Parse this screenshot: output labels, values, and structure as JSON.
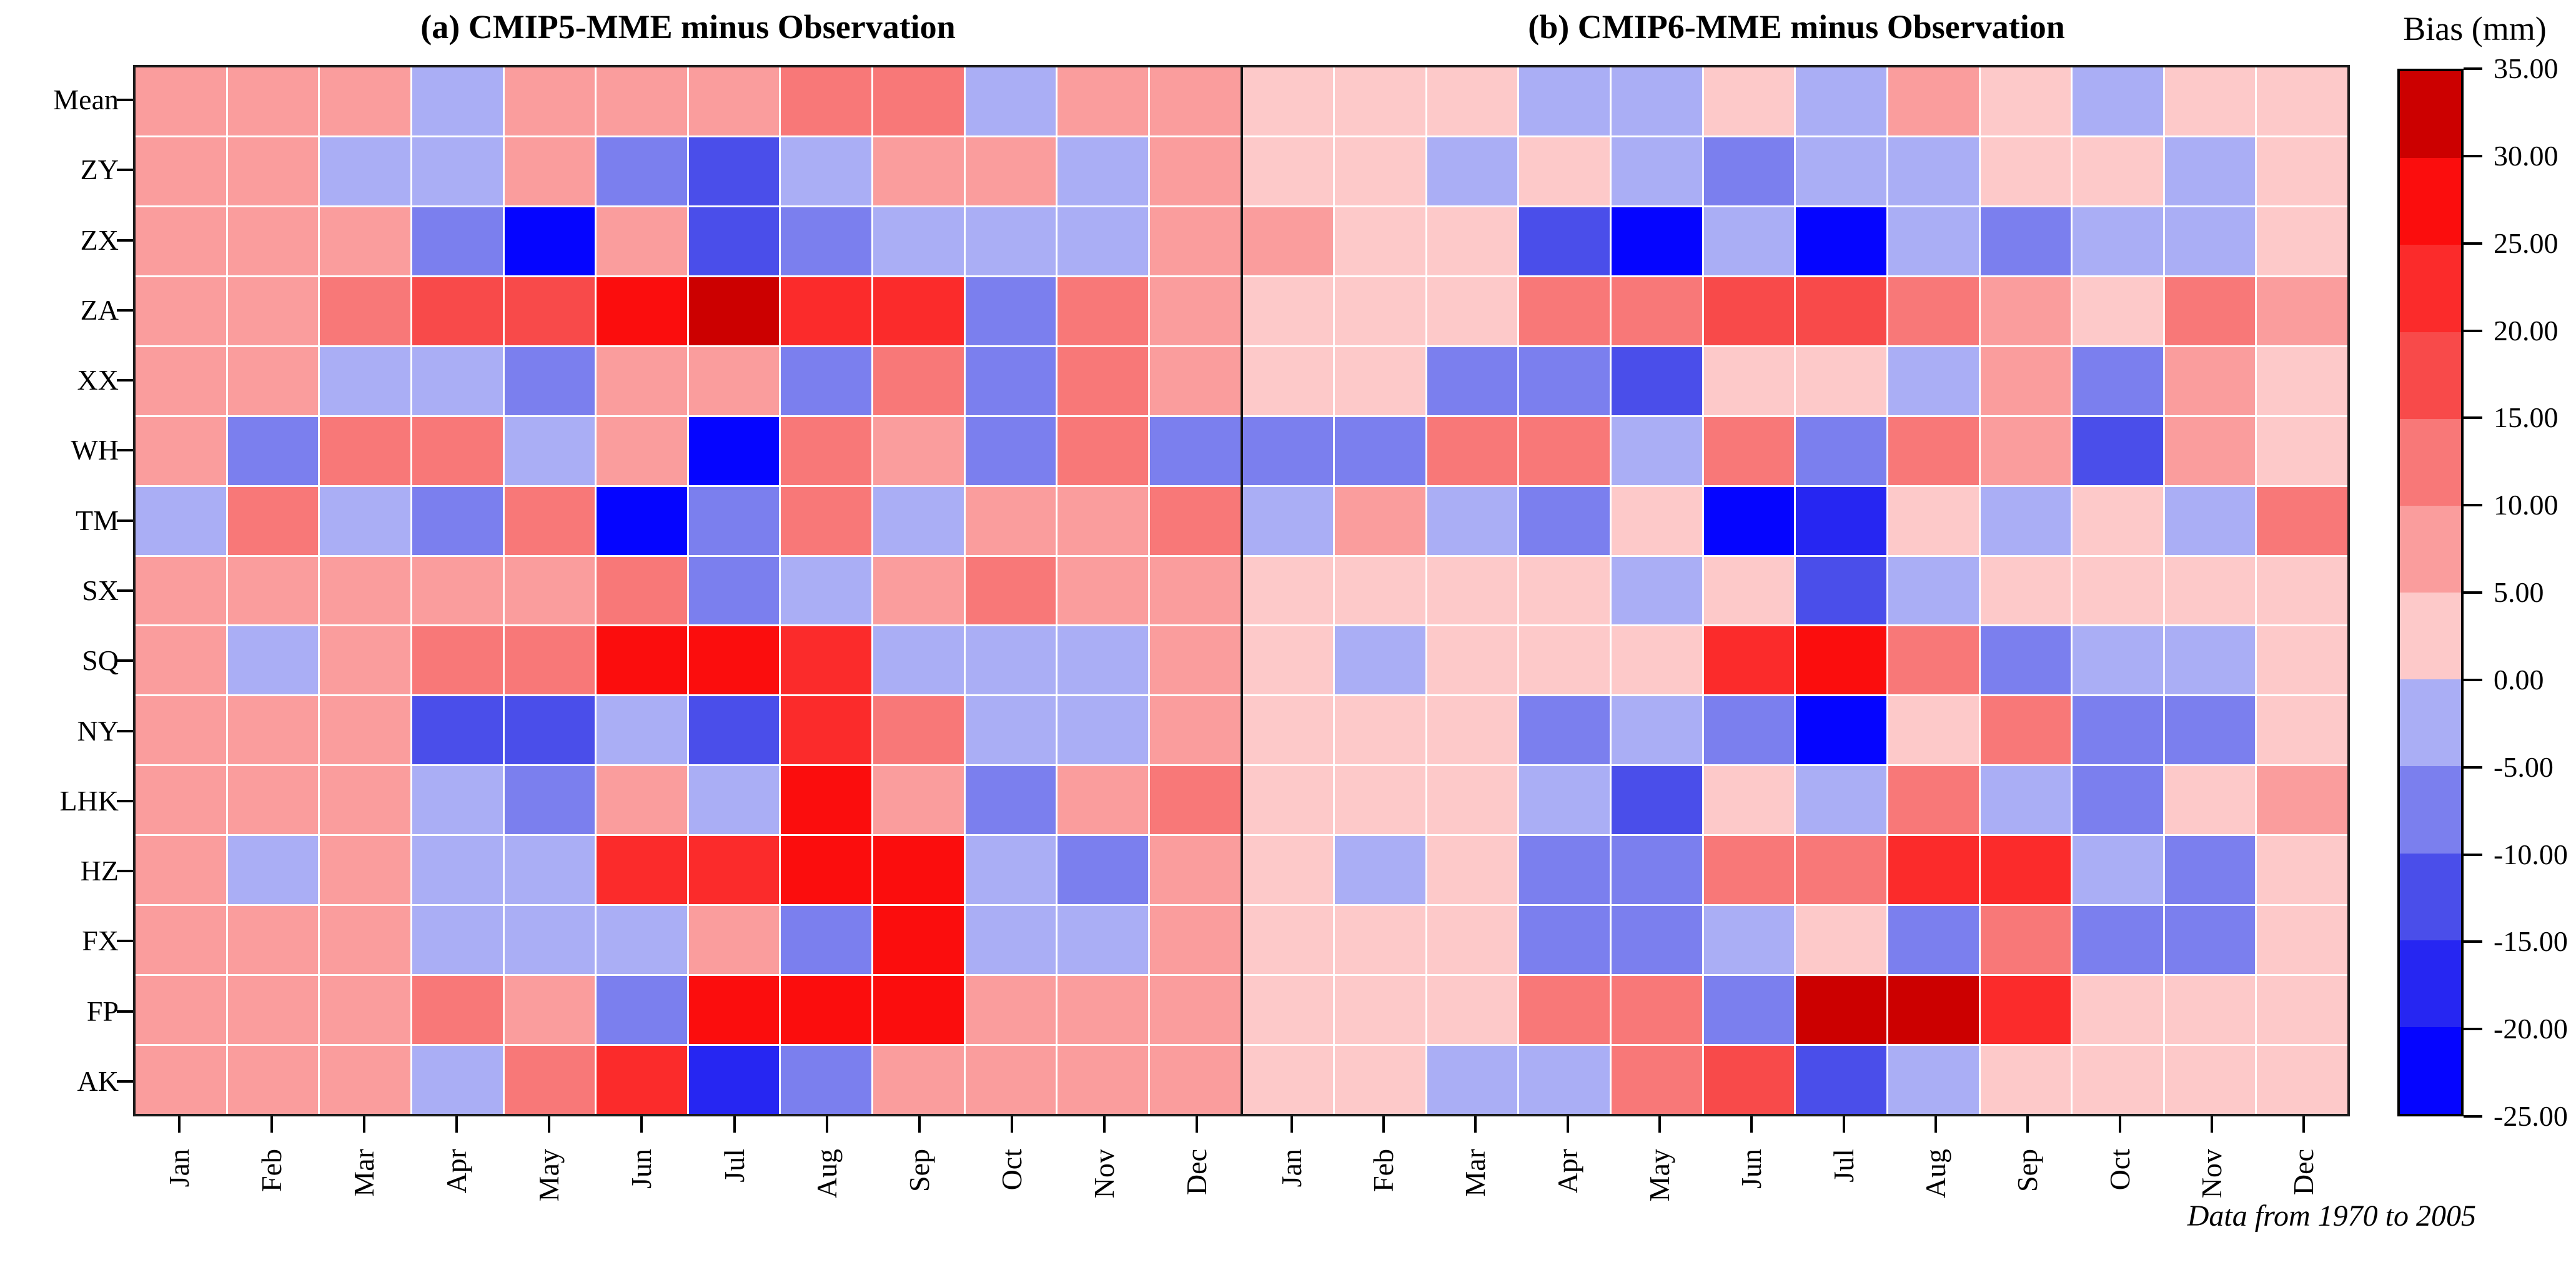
{
  "figure": {
    "caption": "Data from 1970 to 2005"
  },
  "colorbar": {
    "title": "Bias (mm)",
    "tick_labels": [
      "35.00",
      "30.00",
      "25.00",
      "20.00",
      "15.00",
      "10.00",
      "5.00",
      "0.00",
      "-5.00",
      "-10.00",
      "-15.00",
      "-20.00",
      "-25.00"
    ],
    "levels": [
      -25,
      -20,
      -15,
      -10,
      -5,
      0,
      5,
      10,
      15,
      20,
      25,
      30,
      35
    ],
    "bin_colors_bottom_to_top": [
      "#0505FF",
      "#2626F2",
      "#4A4EEA",
      "#7B7FEE",
      "#AAAEF5",
      "#FDC9C9",
      "#FA9D9D",
      "#F87878",
      "#F84A4A",
      "#FB2B2B",
      "#FB0D0D",
      "#CC0000"
    ]
  },
  "chart_data": [
    {
      "type": "heatmap",
      "title": "(a) CMIP5-MME minus Observation",
      "xlabel": "",
      "ylabel": "",
      "legend_position": "right-colorbar",
      "grid": true,
      "value_range": [
        -25,
        35
      ],
      "columns": [
        "Jan",
        "Feb",
        "Mar",
        "Apr",
        "May",
        "Jun",
        "Jul",
        "Aug",
        "Sep",
        "Oct",
        "Nov",
        "Dec"
      ],
      "rows": [
        "Mean",
        "ZY",
        "ZX",
        "ZA",
        "XX",
        "WH",
        "TM",
        "SX",
        "SQ",
        "NY",
        "LHK",
        "HZ",
        "FX",
        "FP",
        "AK"
      ],
      "values": [
        [
          7.5,
          7.5,
          7.5,
          -2.5,
          7.5,
          7.5,
          7.5,
          12.5,
          12.5,
          -2.5,
          7.5,
          7.5
        ],
        [
          7.5,
          7.5,
          -2.5,
          -2.5,
          7.5,
          -7.5,
          -12.5,
          -2.5,
          7.5,
          7.5,
          -2.5,
          7.5
        ],
        [
          7.5,
          7.5,
          7.5,
          -7.5,
          -22.5,
          7.5,
          -12.5,
          -7.5,
          -2.5,
          -2.5,
          -2.5,
          7.5
        ],
        [
          7.5,
          7.5,
          12.5,
          17.5,
          17.5,
          27.5,
          32.5,
          22.5,
          22.5,
          -7.5,
          12.5,
          7.5
        ],
        [
          7.5,
          7.5,
          -2.5,
          -2.5,
          -7.5,
          7.5,
          7.5,
          -7.5,
          12.5,
          -7.5,
          12.5,
          7.5
        ],
        [
          7.5,
          -7.5,
          12.5,
          12.5,
          -2.5,
          7.5,
          -22.5,
          12.5,
          7.5,
          -7.5,
          12.5,
          -7.5
        ],
        [
          -2.5,
          12.5,
          -2.5,
          -7.5,
          12.5,
          -22.5,
          -7.5,
          12.5,
          -2.5,
          7.5,
          7.5,
          12.5
        ],
        [
          7.5,
          7.5,
          7.5,
          7.5,
          7.5,
          12.5,
          -7.5,
          -2.5,
          7.5,
          12.5,
          7.5,
          7.5
        ],
        [
          7.5,
          -2.5,
          7.5,
          12.5,
          12.5,
          27.5,
          27.5,
          22.5,
          -2.5,
          -2.5,
          -2.5,
          7.5
        ],
        [
          7.5,
          7.5,
          7.5,
          -12.5,
          -12.5,
          -2.5,
          -12.5,
          22.5,
          12.5,
          -2.5,
          -2.5,
          7.5
        ],
        [
          7.5,
          7.5,
          7.5,
          -2.5,
          -7.5,
          7.5,
          -2.5,
          27.5,
          7.5,
          -7.5,
          7.5,
          12.5
        ],
        [
          7.5,
          -2.5,
          7.5,
          -2.5,
          -2.5,
          22.5,
          22.5,
          27.5,
          27.5,
          -2.5,
          -7.5,
          7.5
        ],
        [
          7.5,
          7.5,
          7.5,
          -2.5,
          -2.5,
          -2.5,
          7.5,
          -7.5,
          27.5,
          -2.5,
          -2.5,
          7.5
        ],
        [
          7.5,
          7.5,
          7.5,
          12.5,
          7.5,
          -7.5,
          27.5,
          27.5,
          27.5,
          7.5,
          7.5,
          7.5
        ],
        [
          7.5,
          7.5,
          7.5,
          -2.5,
          12.5,
          22.5,
          -17.5,
          -7.5,
          7.5,
          7.5,
          7.5,
          7.5
        ]
      ]
    },
    {
      "type": "heatmap",
      "title": "(b) CMIP6-MME minus Observation",
      "xlabel": "",
      "ylabel": "",
      "legend_position": "right-colorbar",
      "grid": true,
      "value_range": [
        -25,
        35
      ],
      "columns": [
        "Jan",
        "Feb",
        "Mar",
        "Apr",
        "May",
        "Jun",
        "Jul",
        "Aug",
        "Sep",
        "Oct",
        "Nov",
        "Dec"
      ],
      "rows": [
        "Mean",
        "ZY",
        "ZX",
        "ZA",
        "XX",
        "WH",
        "TM",
        "SX",
        "SQ",
        "NY",
        "LHK",
        "HZ",
        "FX",
        "FP",
        "AK"
      ],
      "values": [
        [
          2.5,
          2.5,
          2.5,
          -2.5,
          -2.5,
          2.5,
          -2.5,
          7.5,
          2.5,
          -2.5,
          2.5,
          2.5
        ],
        [
          2.5,
          2.5,
          -2.5,
          2.5,
          -2.5,
          -7.5,
          -2.5,
          -2.5,
          2.5,
          2.5,
          -2.5,
          2.5
        ],
        [
          7.5,
          2.5,
          2.5,
          -12.5,
          -22.5,
          -2.5,
          -22.5,
          -2.5,
          -7.5,
          -2.5,
          -2.5,
          2.5
        ],
        [
          2.5,
          2.5,
          2.5,
          12.5,
          12.5,
          17.5,
          17.5,
          12.5,
          7.5,
          2.5,
          12.5,
          7.5
        ],
        [
          2.5,
          2.5,
          -7.5,
          -7.5,
          -12.5,
          2.5,
          2.5,
          -2.5,
          7.5,
          -7.5,
          7.5,
          2.5
        ],
        [
          -7.5,
          -7.5,
          12.5,
          12.5,
          -2.5,
          12.5,
          -7.5,
          12.5,
          7.5,
          -12.5,
          7.5,
          2.5
        ],
        [
          -2.5,
          7.5,
          -2.5,
          -7.5,
          2.5,
          -22.5,
          -17.5,
          2.5,
          -2.5,
          2.5,
          -2.5,
          12.5
        ],
        [
          2.5,
          2.5,
          2.5,
          2.5,
          -2.5,
          2.5,
          -12.5,
          -2.5,
          2.5,
          2.5,
          2.5,
          2.5
        ],
        [
          2.5,
          -2.5,
          2.5,
          2.5,
          2.5,
          22.5,
          27.5,
          12.5,
          -7.5,
          -2.5,
          -2.5,
          2.5
        ],
        [
          2.5,
          2.5,
          2.5,
          -7.5,
          -2.5,
          -7.5,
          -22.5,
          2.5,
          12.5,
          -7.5,
          -7.5,
          2.5
        ],
        [
          2.5,
          2.5,
          2.5,
          -2.5,
          -12.5,
          2.5,
          -2.5,
          12.5,
          -2.5,
          -7.5,
          2.5,
          7.5
        ],
        [
          2.5,
          -2.5,
          2.5,
          -7.5,
          -7.5,
          12.5,
          12.5,
          22.5,
          22.5,
          -2.5,
          -7.5,
          2.5
        ],
        [
          2.5,
          2.5,
          2.5,
          -7.5,
          -7.5,
          -2.5,
          2.5,
          -7.5,
          12.5,
          -7.5,
          -7.5,
          2.5
        ],
        [
          2.5,
          2.5,
          2.5,
          12.5,
          12.5,
          -7.5,
          32.5,
          32.5,
          22.5,
          2.5,
          2.5,
          2.5
        ],
        [
          2.5,
          2.5,
          -2.5,
          -2.5,
          12.5,
          17.5,
          -12.5,
          -2.5,
          2.5,
          2.5,
          2.5,
          2.5
        ]
      ]
    }
  ]
}
